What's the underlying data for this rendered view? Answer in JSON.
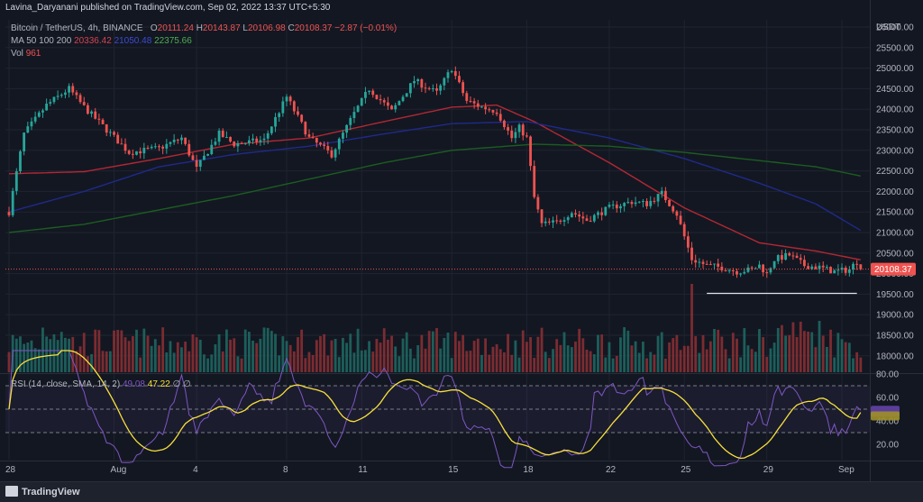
{
  "header": {
    "published": "Lavina_Daryanani published on TradingView.com, Sep 02, 2022 13:37 UTC+5:30"
  },
  "legend": {
    "symbol": "Bitcoin / TetherUS, 4h, BINANCE",
    "ohlc": {
      "O_label": "O",
      "O": "20111.24",
      "H_label": "H",
      "H": "20143.87",
      "L_label": "L",
      "L": "20106.98",
      "C_label": "C",
      "C": "20108.37",
      "change": "−2.87 (−0.01%)"
    },
    "ma": {
      "label": "MA 50 100 200",
      "v50": "20336.42",
      "v100": "21050.48",
      "v200": "22375.66"
    },
    "vol": {
      "label": "Vol",
      "value": "961"
    },
    "rsi": {
      "label": "RSI (14, close, SMA, 14, 2)",
      "value": "49.08",
      "sma": "47.22",
      "e1": "∅",
      "e2": "∅"
    }
  },
  "colors": {
    "background": "#131722",
    "up": "#26a69a",
    "down": "#ef5350",
    "ma50": "#b22833",
    "ma100": "#1f2a8a",
    "ma200": "#1b5e20",
    "rsi": "#7e57c2",
    "rsi_sma": "#f7e03c",
    "price_tag": "#ef5350"
  },
  "footer": {
    "brand": "TradingView"
  },
  "chart_data": {
    "type": "candlestick",
    "title": "Bitcoin / TetherUS, 4h, BINANCE",
    "price_axis_label": "USDT",
    "last_price": "20108.37",
    "price_ticks": [
      "26000.00",
      "25500.00",
      "25000.00",
      "24500.00",
      "24000.00",
      "23500.00",
      "23000.00",
      "22500.00",
      "22000.00",
      "21500.00",
      "21000.00",
      "20500.00",
      "20000.00",
      "19500.00",
      "19000.00",
      "18500.00",
      "18000.00"
    ],
    "rsi_ticks": [
      "80.00",
      "60.00",
      "40.00",
      "20.00"
    ],
    "rsi_bands": [
      70,
      50,
      30
    ],
    "x_ticks": [
      "28",
      "Aug",
      "4",
      "8",
      "11",
      "15",
      "18",
      "22",
      "25",
      "29",
      "Sep"
    ],
    "support_level": 19520,
    "ylim": [
      17900,
      26300
    ],
    "rsi_ylim": [
      5,
      90
    ],
    "price_path_anchors": [
      [
        0,
        21500
      ],
      [
        4,
        23400
      ],
      [
        10,
        24100
      ],
      [
        16,
        24500
      ],
      [
        20,
        24050
      ],
      [
        26,
        23500
      ],
      [
        32,
        22950
      ],
      [
        40,
        23050
      ],
      [
        46,
        23300
      ],
      [
        50,
        22550
      ],
      [
        56,
        23400
      ],
      [
        60,
        23150
      ],
      [
        68,
        23250
      ],
      [
        74,
        24300
      ],
      [
        80,
        23300
      ],
      [
        86,
        22900
      ],
      [
        92,
        23900
      ],
      [
        96,
        24500
      ],
      [
        102,
        23950
      ],
      [
        108,
        24700
      ],
      [
        114,
        24400
      ],
      [
        118,
        25000
      ],
      [
        122,
        24200
      ],
      [
        126,
        24050
      ],
      [
        130,
        23950
      ],
      [
        134,
        23300
      ],
      [
        136,
        23550
      ],
      [
        138,
        23300
      ],
      [
        140,
        21850
      ],
      [
        142,
        21200
      ],
      [
        146,
        21250
      ],
      [
        150,
        21500
      ],
      [
        154,
        21300
      ],
      [
        160,
        21600
      ],
      [
        166,
        21750
      ],
      [
        170,
        21700
      ],
      [
        174,
        21950
      ],
      [
        178,
        21450
      ],
      [
        182,
        20350
      ],
      [
        186,
        20200
      ],
      [
        190,
        20150
      ],
      [
        194,
        20050
      ],
      [
        198,
        20100
      ],
      [
        200,
        20200
      ],
      [
        202,
        20000
      ],
      [
        204,
        20350
      ],
      [
        208,
        20450
      ],
      [
        212,
        20200
      ],
      [
        216,
        20150
      ],
      [
        220,
        20050
      ],
      [
        224,
        20100
      ],
      [
        226,
        20300
      ],
      [
        227,
        20108
      ]
    ],
    "ma50_anchors": [
      [
        0,
        22430
      ],
      [
        20,
        22480
      ],
      [
        40,
        22800
      ],
      [
        60,
        23150
      ],
      [
        80,
        23300
      ],
      [
        100,
        23700
      ],
      [
        118,
        24050
      ],
      [
        130,
        24100
      ],
      [
        140,
        23700
      ],
      [
        160,
        22700
      ],
      [
        180,
        21600
      ],
      [
        200,
        20750
      ],
      [
        215,
        20550
      ],
      [
        227,
        20336
      ]
    ],
    "ma100_anchors": [
      [
        0,
        21500
      ],
      [
        20,
        22000
      ],
      [
        40,
        22600
      ],
      [
        60,
        22900
      ],
      [
        80,
        23100
      ],
      [
        100,
        23400
      ],
      [
        118,
        23650
      ],
      [
        138,
        23700
      ],
      [
        160,
        23300
      ],
      [
        180,
        22800
      ],
      [
        200,
        22200
      ],
      [
        215,
        21700
      ],
      [
        227,
        21050
      ]
    ],
    "ma200_anchors": [
      [
        0,
        21000
      ],
      [
        20,
        21200
      ],
      [
        40,
        21550
      ],
      [
        60,
        21900
      ],
      [
        80,
        22300
      ],
      [
        100,
        22700
      ],
      [
        118,
        23000
      ],
      [
        140,
        23150
      ],
      [
        160,
        23100
      ],
      [
        180,
        22950
      ],
      [
        200,
        22750
      ],
      [
        215,
        22600
      ],
      [
        227,
        22376
      ]
    ],
    "volume_notes": "volume bars shown at bottom of price pane; spike near bar 182 and bar 188",
    "rsi_current": 49.08,
    "rsi_sma_current": 47.22
  }
}
